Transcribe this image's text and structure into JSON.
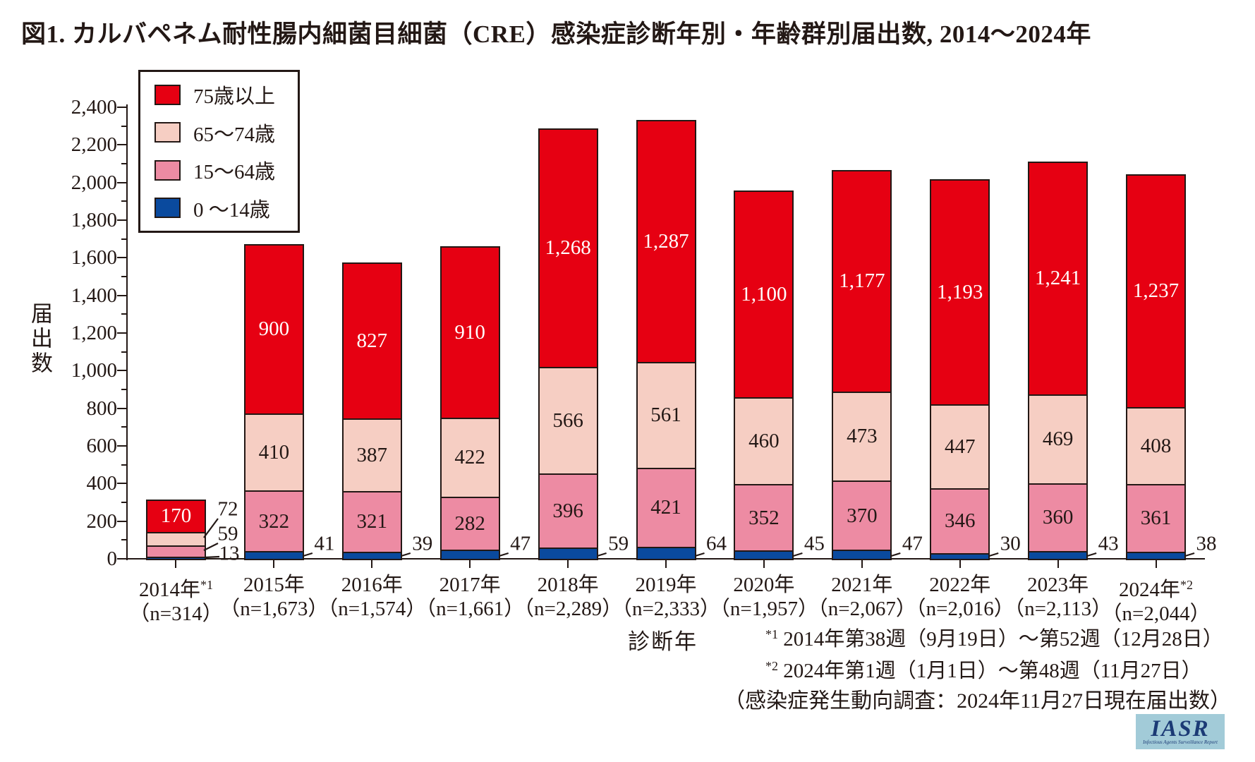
{
  "title": "図1. カルバペネム耐性腸内細菌目細菌（CRE）感染症診断年別・年齢群別届出数, 2014～2024年",
  "y_axis": {
    "label": "届出数",
    "max": 2400,
    "major_step": 200,
    "minor_step": 100
  },
  "x_axis": {
    "label": "診断年"
  },
  "chart_data": {
    "type": "bar",
    "stacked": true,
    "title": "図1. カルバペネム耐性腸内細菌目細菌（CRE）感染症診断年別・年齢群別届出数, 2014～2024年",
    "xlabel": "診断年",
    "ylabel": "届出数",
    "ylim": [
      0,
      2400
    ],
    "grid": false,
    "legend_position": "upper-left",
    "categories": [
      {
        "year": "2014年",
        "sup": "*1",
        "n": "（n=314）"
      },
      {
        "year": "2015年",
        "sup": "",
        "n": "（n=1,673）"
      },
      {
        "year": "2016年",
        "sup": "",
        "n": "（n=1,574）"
      },
      {
        "year": "2017年",
        "sup": "",
        "n": "（n=1,661）"
      },
      {
        "year": "2018年",
        "sup": "",
        "n": "（n=2,289）"
      },
      {
        "year": "2019年",
        "sup": "",
        "n": "（n=2,333）"
      },
      {
        "year": "2020年",
        "sup": "",
        "n": "（n=1,957）"
      },
      {
        "year": "2021年",
        "sup": "",
        "n": "（n=2,067）"
      },
      {
        "year": "2022年",
        "sup": "",
        "n": "（n=2,016）"
      },
      {
        "year": "2023年",
        "sup": "",
        "n": "（n=2,113）"
      },
      {
        "year": "2024年",
        "sup": "*2",
        "n": "（n=2,044）"
      }
    ],
    "series": [
      {
        "name": "0 ～14歳",
        "color": "#0a4a9e",
        "values": [
          13,
          41,
          39,
          47,
          59,
          64,
          45,
          47,
          30,
          43,
          38
        ]
      },
      {
        "name": "15～64歳",
        "color": "#ed8ba3",
        "values": [
          59,
          322,
          321,
          282,
          396,
          421,
          352,
          370,
          346,
          360,
          361
        ]
      },
      {
        "name": "65～74歳",
        "color": "#f6cec3",
        "values": [
          72,
          410,
          387,
          422,
          566,
          561,
          460,
          473,
          447,
          469,
          408
        ]
      },
      {
        "name": "75歳以上",
        "color": "#e60012",
        "values": [
          170,
          900,
          827,
          910,
          1268,
          1287,
          1100,
          1177,
          1193,
          1241,
          1237
        ]
      }
    ]
  },
  "footnotes": [
    {
      "marker": "*1",
      "text": "2014年第38週（9月19日）～第52週（12月28日）"
    },
    {
      "marker": "*2",
      "text": "2024年第1週（1月1日）～第48週（11月27日）"
    }
  ],
  "source_note": "（感染症発生動向調査：2024年11月27日現在届出数）",
  "logo": {
    "acronym": "IASR",
    "subtitle": "Infectious Agents Surveillance Report"
  },
  "colors": {
    "ink": "#231815",
    "background": "#ffffff",
    "logo_bg": "#a2cbd8",
    "logo_text": "#1b3a75"
  }
}
